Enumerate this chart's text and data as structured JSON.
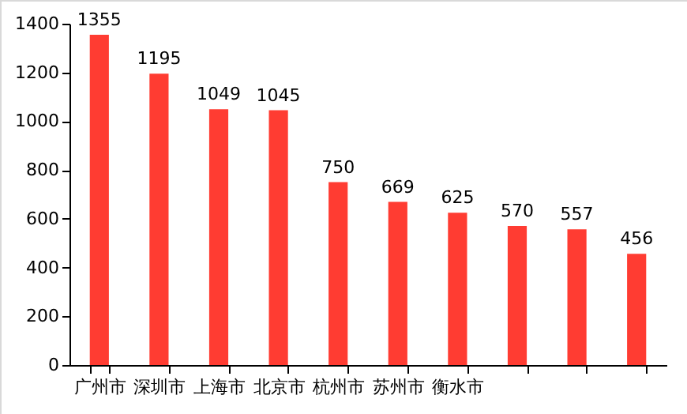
{
  "chart_data": {
    "type": "bar",
    "categories": [
      "广州市",
      "深圳市",
      "上海市",
      "北京市",
      "杭州市",
      "苏州市",
      "衡水市",
      null,
      null,
      null
    ],
    "values": [
      1355,
      1195,
      1049,
      1045,
      750,
      669,
      625,
      570,
      557,
      456
    ],
    "color": "#ff3c32",
    "ylim": [
      0,
      1400
    ],
    "yticks": [
      0,
      200,
      400,
      600,
      800,
      1000,
      1200,
      1400
    ],
    "grid": false,
    "data_labels": true
  }
}
